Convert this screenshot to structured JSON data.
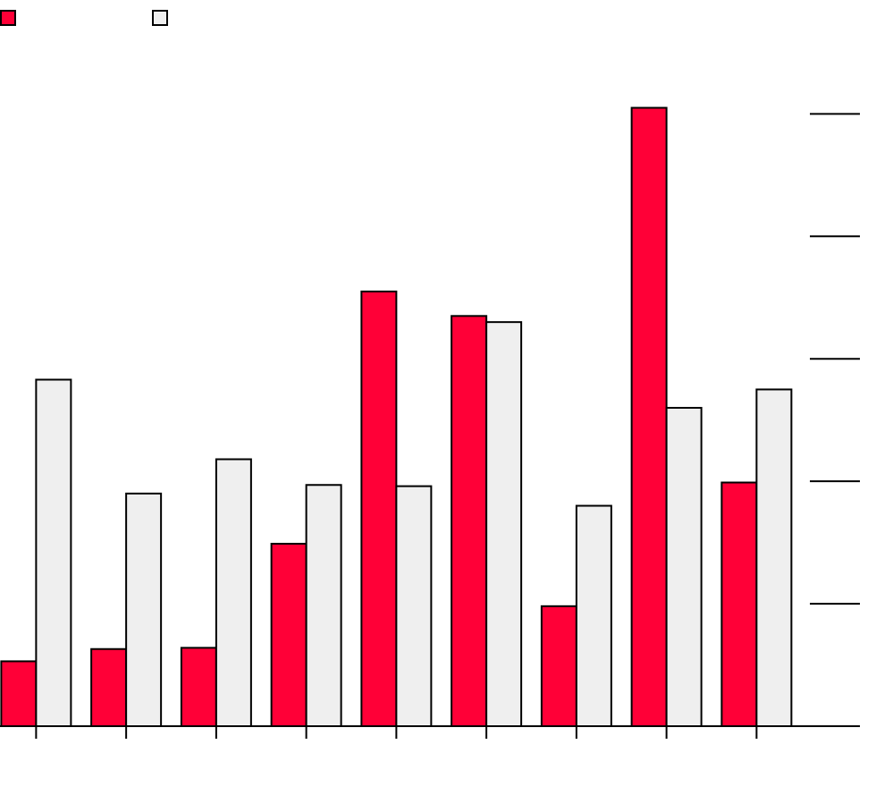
{
  "chart_data": {
    "type": "bar",
    "categories": [
      "",
      "",
      "",
      "",
      "",
      "",
      "",
      "",
      ""
    ],
    "series": [
      {
        "name": "",
        "color": "#ff0037",
        "values": [
          5.3,
          6.3,
          6.4,
          14.9,
          35.5,
          33.5,
          9.8,
          50.5,
          19.9
        ]
      },
      {
        "name": "",
        "color": "#efefef",
        "values": [
          28.3,
          19.0,
          21.8,
          19.7,
          19.6,
          33.0,
          18.0,
          26.0,
          27.5
        ]
      }
    ],
    "title": "",
    "xlabel": "",
    "ylabel": "",
    "ylim": [
      0,
      52
    ],
    "yticks": [
      0,
      10,
      20,
      30,
      40,
      50
    ],
    "y_axis_side": "right",
    "grid": false,
    "legend": "top-left"
  }
}
